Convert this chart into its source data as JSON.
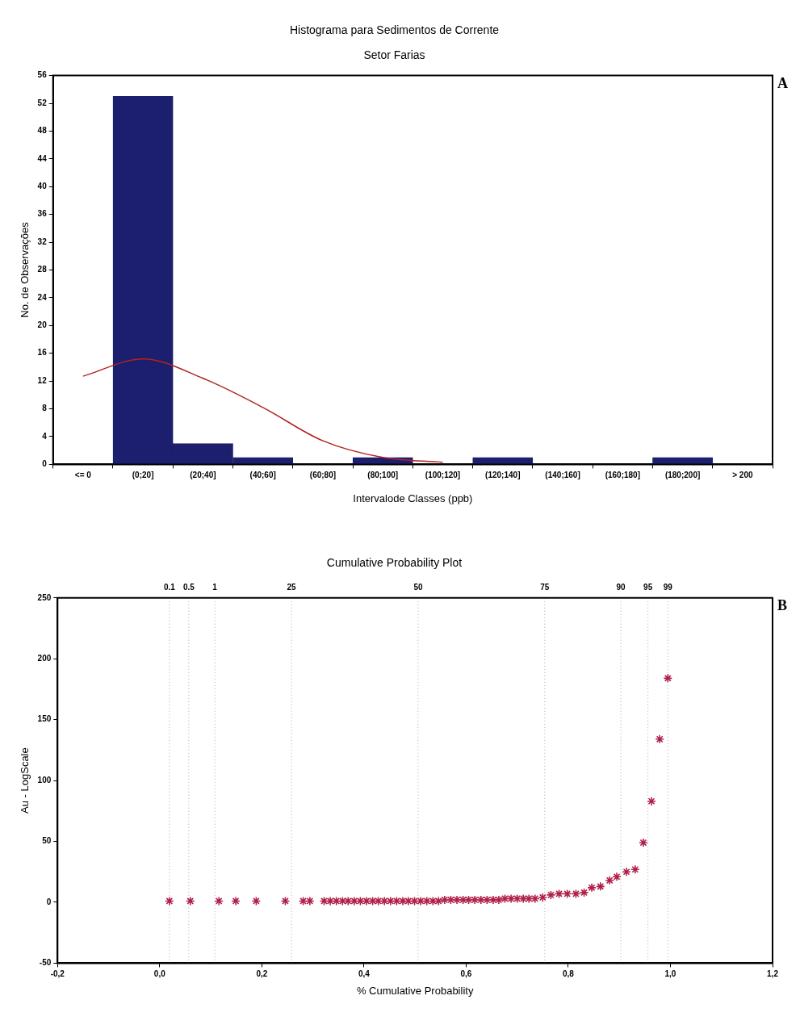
{
  "chart_data": [
    {
      "type": "bar",
      "title": "Histograma para Sedimentos de Corrente",
      "subtitle": "Setor Farias",
      "xlabel": "Intervalode Classes (ppb)",
      "ylabel": "No. de Observações",
      "categories": [
        "<= 0",
        "(0;20]",
        "(20;40]",
        "(40;60]",
        "(60;80]",
        "(80;100]",
        "(100;120]",
        "(120;140]",
        "(140;160]",
        "(160;180]",
        "(180;200]",
        "> 200"
      ],
      "series": [
        {
          "color": "#1c1f6e",
          "values": [
            0,
            53,
            3,
            1,
            0,
            1,
            0,
            1,
            0,
            0,
            1,
            0
          ]
        },
        {
          "type": "line",
          "color": "#b22222",
          "values": [
            12.7,
            15.2,
            12.4,
            8.2,
            3.4,
            1,
            0.3,
            null,
            null,
            null,
            null,
            null
          ]
        }
      ],
      "ylim": [
        0,
        56
      ],
      "yticks": [
        0,
        4,
        8,
        12,
        16,
        20,
        24,
        28,
        32,
        36,
        40,
        44,
        48,
        52,
        56
      ],
      "grid": false,
      "legend": false,
      "marker": "none",
      "annotations": [
        "A"
      ]
    },
    {
      "type": "scatter",
      "title": "Cumulative Probability Plot",
      "xlabel": "% Cumulative Probability",
      "ylabel": "Au - LogScale",
      "series": [
        {
          "color": "#b0204a",
          "x": [
            0.019,
            0.06,
            0.116,
            0.149,
            0.189,
            0.246,
            0.281,
            0.294,
            0.322,
            0.334,
            0.346,
            0.358,
            0.369,
            0.381,
            0.393,
            0.405,
            0.417,
            0.428,
            0.44,
            0.452,
            0.464,
            0.476,
            0.487,
            0.499,
            0.511,
            0.523,
            0.535,
            0.546,
            0.558,
            0.57,
            0.582,
            0.594,
            0.605,
            0.617,
            0.629,
            0.641,
            0.653,
            0.664,
            0.676,
            0.688,
            0.7,
            0.712,
            0.723,
            0.735,
            0.75,
            0.766,
            0.782,
            0.798,
            0.815,
            0.831,
            0.846,
            0.863,
            0.881,
            0.895,
            0.914,
            0.931,
            0.947,
            0.963,
            0.979,
            0.995
          ],
          "values": [
            1,
            1,
            1,
            1,
            1,
            1,
            1,
            1,
            1,
            1,
            1,
            1,
            1,
            1,
            1,
            1,
            1,
            1,
            1,
            1,
            1,
            1,
            1,
            1,
            1,
            1,
            1,
            1,
            2,
            2,
            2,
            2,
            2,
            2,
            2,
            2,
            2,
            2,
            3,
            3,
            3,
            3,
            3,
            3,
            4,
            6,
            7,
            7,
            7,
            8,
            12,
            13,
            18,
            21,
            25,
            27,
            49,
            83,
            134,
            184
          ]
        }
      ],
      "xlim": [
        -0.2,
        1.2
      ],
      "xticks": [
        {
          "value": -0.2,
          "label": "-0,2"
        },
        {
          "value": 0,
          "label": "0,0"
        },
        {
          "value": 0.2,
          "label": "0,2"
        },
        {
          "value": 0.4,
          "label": "0,4"
        },
        {
          "value": 0.6,
          "label": "0,6"
        },
        {
          "value": 0.8,
          "label": "0,8"
        },
        {
          "value": 1,
          "label": "1,0"
        },
        {
          "value": 1.2,
          "label": "1,2"
        }
      ],
      "ylim": [
        -50,
        250
      ],
      "yticks": [
        -50,
        0,
        50,
        100,
        150,
        200,
        250
      ],
      "grid": false,
      "legend": false,
      "marker": "cross",
      "ref_lines": [
        {
          "axis": "x",
          "value": 0.019,
          "line_style": "dotted",
          "color": "#aaaaaa"
        },
        {
          "axis": "x",
          "value": 0.057,
          "line_style": "dotted",
          "color": "#aaaaaa"
        },
        {
          "axis": "x",
          "value": 0.108,
          "line_style": "dotted",
          "color": "#aaaaaa"
        },
        {
          "axis": "x",
          "value": 0.258,
          "line_style": "dotted",
          "color": "#aaaaaa"
        },
        {
          "axis": "x",
          "value": 0.506,
          "line_style": "dotted",
          "color": "#aaaaaa"
        },
        {
          "axis": "x",
          "value": 0.754,
          "line_style": "dotted",
          "color": "#aaaaaa"
        },
        {
          "axis": "x",
          "value": 0.903,
          "line_style": "dotted",
          "color": "#aaaaaa"
        },
        {
          "axis": "x",
          "value": 0.956,
          "line_style": "dotted",
          "color": "#aaaaaa"
        },
        {
          "axis": "x",
          "value": 0.995,
          "line_style": "dotted",
          "color": "#aaaaaa"
        }
      ],
      "annotations": [
        "B",
        {
          "text": "0.1",
          "x": 0.019,
          "y": 250
        },
        {
          "text": "0.5",
          "x": 0.057,
          "y": 250
        },
        {
          "text": "1",
          "x": 0.108,
          "y": 250
        },
        {
          "text": "25",
          "x": 0.258,
          "y": 250
        },
        {
          "text": "50",
          "x": 0.506,
          "y": 250
        },
        {
          "text": "75",
          "x": 0.754,
          "y": 250
        },
        {
          "text": "90",
          "x": 0.903,
          "y": 250
        },
        {
          "text": "95",
          "x": 0.956,
          "y": 250
        },
        {
          "text": "99",
          "x": 0.995,
          "y": 250
        }
      ]
    }
  ]
}
